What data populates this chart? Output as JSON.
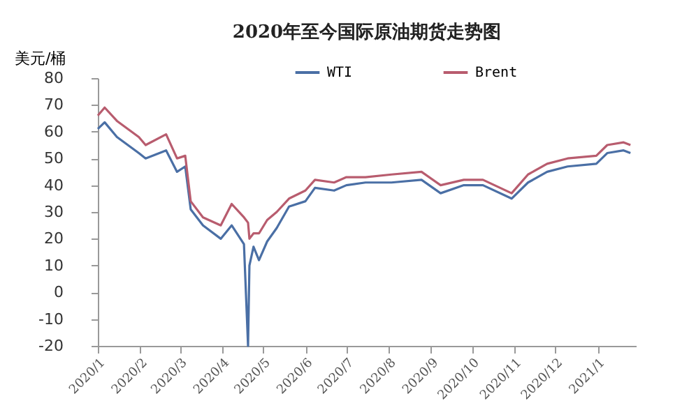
{
  "chart_data": {
    "type": "line",
    "title": "2020年至今国际原油期货走势图",
    "ylabel": "美元/桶",
    "x": [
      "2020-01-01",
      "2020-01-06",
      "2020-01-15",
      "2020-01-31",
      "2020-02-05",
      "2020-02-20",
      "2020-02-28",
      "2020-03-05",
      "2020-03-09",
      "2020-03-18",
      "2020-03-31",
      "2020-04-08",
      "2020-04-17",
      "2020-04-20",
      "2020-04-21",
      "2020-04-24",
      "2020-04-28",
      "2020-05-04",
      "2020-05-11",
      "2020-05-20",
      "2020-06-01",
      "2020-06-08",
      "2020-06-22",
      "2020-07-01",
      "2020-07-15",
      "2020-08-03",
      "2020-08-25",
      "2020-09-08",
      "2020-09-25",
      "2020-10-09",
      "2020-10-30",
      "2020-11-11",
      "2020-11-25",
      "2020-12-10",
      "2020-12-31",
      "2021-01-08",
      "2021-01-20",
      "2021-01-25"
    ],
    "series": [
      {
        "name": "WTI",
        "color": "#4a6fa5",
        "values": [
          61,
          63.5,
          58,
          52,
          50,
          53,
          45,
          47,
          31,
          25,
          20,
          25,
          18,
          -20,
          10,
          17,
          12,
          19,
          24,
          32,
          34,
          39,
          38,
          40,
          41,
          41,
          42,
          37,
          40,
          40,
          35,
          41,
          45,
          47,
          48,
          52,
          53,
          52
        ]
      },
      {
        "name": "Brent",
        "color": "#b85c6e",
        "values": [
          66,
          69,
          64,
          58,
          55,
          59,
          50,
          51,
          34,
          28,
          25,
          33,
          28,
          26,
          20,
          22,
          22,
          27,
          30,
          35,
          38,
          42,
          41,
          43,
          43,
          44,
          45,
          40,
          42,
          42,
          37,
          44,
          48,
          50,
          51,
          55,
          56,
          55
        ]
      }
    ],
    "xlim": [
      "2020-01-01",
      "2021-01-29"
    ],
    "xticks": [
      {
        "value": "2020-01-01",
        "label": "2020/1"
      },
      {
        "value": "2020-02-01",
        "label": "2020/2"
      },
      {
        "value": "2020-03-01",
        "label": "2020/3"
      },
      {
        "value": "2020-04-01",
        "label": "2020/4"
      },
      {
        "value": "2020-05-01",
        "label": "2020/5"
      },
      {
        "value": "2020-06-01",
        "label": "2020/6"
      },
      {
        "value": "2020-07-01",
        "label": "2020/7"
      },
      {
        "value": "2020-08-01",
        "label": "2020/8"
      },
      {
        "value": "2020-09-01",
        "label": "2020/9"
      },
      {
        "value": "2020-10-01",
        "label": "2020/10"
      },
      {
        "value": "2020-11-01",
        "label": "2020/11"
      },
      {
        "value": "2020-12-01",
        "label": "2020/12"
      },
      {
        "value": "2021-01-01",
        "label": "2021/1"
      }
    ],
    "ylim": [
      -20,
      80
    ],
    "yticks": [
      -20,
      -10,
      0,
      10,
      20,
      30,
      40,
      50,
      60,
      70,
      80
    ],
    "grid": false,
    "legend": "top",
    "marker": "none",
    "line_style": "solid"
  }
}
